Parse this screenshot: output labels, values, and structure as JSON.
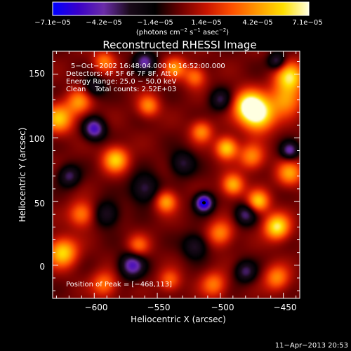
{
  "chart_data": {
    "type": "heatmap",
    "title": "Reconstructed RHESSI Image",
    "xlabel": "Heliocentric X (arcsec)",
    "ylabel": "Heliocentric Y (arcsec)",
    "xlim": [
      -633,
      -437
    ],
    "ylim": [
      -26,
      168
    ],
    "x_ticks": [
      -600,
      -550,
      -500,
      -450
    ],
    "x_tick_labels": [
      "−600",
      "−550",
      "−500",
      "−450"
    ],
    "y_ticks": [
      0,
      50,
      100,
      150
    ],
    "y_tick_labels": [
      "0",
      "50",
      "100",
      "150"
    ],
    "colorbar": {
      "range": [
        -7.1e-05,
        7.1e-05
      ],
      "tick_labels": [
        "−7.1e−05",
        "−4.2e−05",
        "−1.4e−05",
        "1.4e−05",
        "4.2e−05",
        "7.1e−05"
      ],
      "unit_main": "(photons cm",
      "unit_exp1": "−2",
      "unit_mid": " s",
      "unit_exp2": "−1",
      "unit_tail": " asec",
      "unit_exp3": "−2",
      "unit_close": ")",
      "colors": [
        "#0000ff",
        "#3a00c8",
        "#6a2ca8",
        "#1a0a1a",
        "#000000",
        "#6e0000",
        "#c81400",
        "#ff5000",
        "#ff9a00",
        "#ffe000",
        "#ffffe0"
      ]
    },
    "annotations": [
      "5−Oct−2002 16:48:04.000 to 16:52:00.000",
      "Detectors: 4F 5F 6F 7F 8F, Att 0",
      "Energy Range: 25.0 − 50.0 keV",
      "Clean    Total counts: 2.52E+03"
    ],
    "peak_label": "Position of Peak = [−468,113]",
    "peak": [
      -468,
      113
    ],
    "features": [
      {
        "x": -470,
        "y": 118,
        "v": 1.0,
        "s": 9
      },
      {
        "x": -478,
        "y": 126,
        "v": 0.85,
        "s": 8
      },
      {
        "x": -445,
        "y": 148,
        "v": 0.8,
        "s": 8
      },
      {
        "x": -448,
        "y": 130,
        "v": 0.6,
        "s": 9
      },
      {
        "x": -625,
        "y": 10,
        "v": 0.8,
        "s": 8
      },
      {
        "x": -628,
        "y": 115,
        "v": 0.7,
        "s": 8
      },
      {
        "x": -612,
        "y": 128,
        "v": 0.55,
        "s": 7
      },
      {
        "x": -583,
        "y": 83,
        "v": 0.75,
        "s": 7
      },
      {
        "x": -557,
        "y": 125,
        "v": 0.55,
        "s": 6
      },
      {
        "x": -543,
        "y": 50,
        "v": 0.65,
        "s": 6
      },
      {
        "x": -536,
        "y": 155,
        "v": 0.55,
        "s": 6
      },
      {
        "x": -520,
        "y": 148,
        "v": 0.5,
        "s": 6
      },
      {
        "x": -515,
        "y": 105,
        "v": 0.55,
        "s": 6
      },
      {
        "x": -495,
        "y": 92,
        "v": 0.8,
        "s": 6
      },
      {
        "x": -475,
        "y": 85,
        "v": 0.55,
        "s": 7
      },
      {
        "x": -490,
        "y": 63,
        "v": 0.7,
        "s": 6
      },
      {
        "x": -470,
        "y": 50,
        "v": 0.75,
        "s": 6
      },
      {
        "x": -455,
        "y": 30,
        "v": 0.9,
        "s": 7
      },
      {
        "x": -445,
        "y": 72,
        "v": 0.6,
        "s": 7
      },
      {
        "x": -455,
        "y": -10,
        "v": 0.55,
        "s": 7
      },
      {
        "x": -500,
        "y": 25,
        "v": 0.55,
        "s": 7
      },
      {
        "x": -610,
        "y": 40,
        "v": 0.55,
        "s": 7
      },
      {
        "x": -592,
        "y": -15,
        "v": 0.5,
        "s": 7
      },
      {
        "x": -505,
        "y": -15,
        "v": 0.5,
        "s": 7
      },
      {
        "x": -540,
        "y": -12,
        "v": 0.45,
        "s": 6
      },
      {
        "x": -565,
        "y": 15,
        "v": 0.45,
        "s": 6
      },
      {
        "x": -592,
        "y": 160,
        "v": 0.5,
        "s": 6
      },
      {
        "x": -513,
        "y": 49,
        "v": -1.0,
        "s": 5
      },
      {
        "x": -600,
        "y": 107,
        "v": -0.75,
        "s": 6
      },
      {
        "x": -560,
        "y": 160,
        "v": -0.6,
        "s": 6
      },
      {
        "x": -570,
        "y": 0,
        "v": -0.7,
        "s": 7
      },
      {
        "x": -455,
        "y": 160,
        "v": -0.55,
        "s": 5
      },
      {
        "x": -480,
        "y": 40,
        "v": -0.55,
        "s": 6
      },
      {
        "x": -445,
        "y": 90,
        "v": -0.6,
        "s": 5
      },
      {
        "x": -560,
        "y": 60,
        "v": -0.5,
        "s": 8
      },
      {
        "x": -590,
        "y": 40,
        "v": -0.45,
        "s": 7
      },
      {
        "x": -530,
        "y": 80,
        "v": -0.45,
        "s": 7
      },
      {
        "x": -620,
        "y": 70,
        "v": -0.5,
        "s": 6
      },
      {
        "x": -520,
        "y": 15,
        "v": -0.45,
        "s": 7
      },
      {
        "x": -480,
        "y": -5,
        "v": -0.5,
        "s": 6
      },
      {
        "x": -600,
        "y": 140,
        "v": -0.4,
        "s": 6
      },
      {
        "x": -500,
        "y": 130,
        "v": -0.45,
        "s": 6
      }
    ]
  },
  "footer": {
    "timestamp": "11−Apr−2013 20:53"
  }
}
